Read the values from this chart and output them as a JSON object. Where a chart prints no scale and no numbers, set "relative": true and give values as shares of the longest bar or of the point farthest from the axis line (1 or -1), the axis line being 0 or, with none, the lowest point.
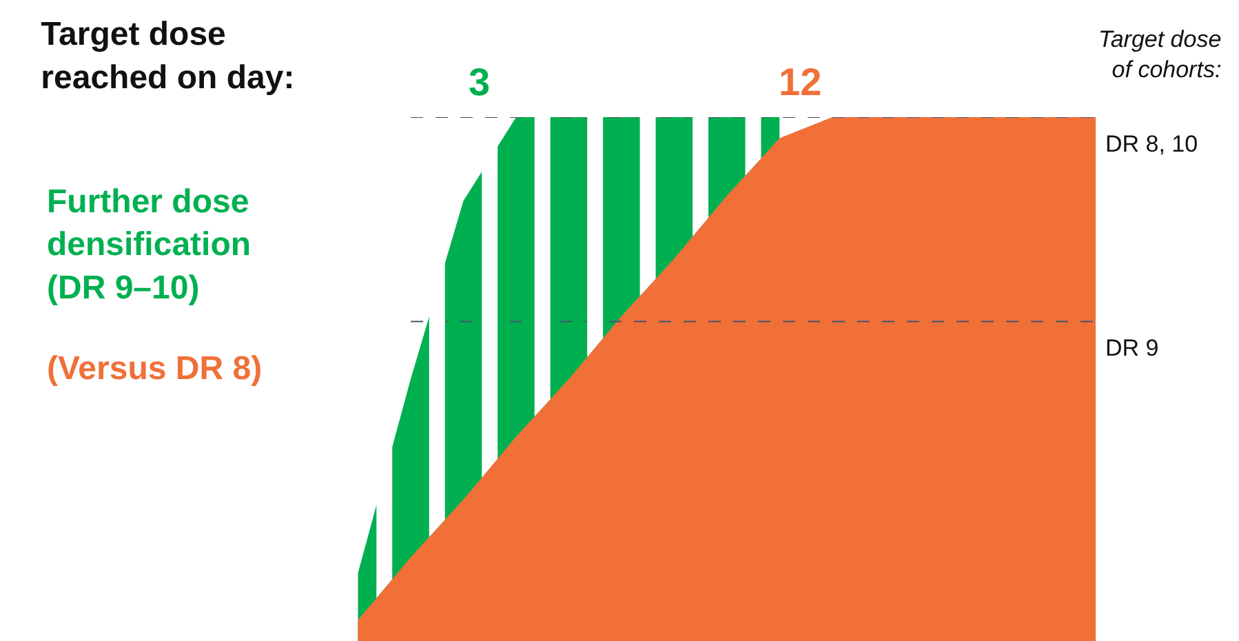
{
  "chart_data": {
    "type": "area",
    "relative": true,
    "title": "Target dose reached on day:",
    "categories": [
      null,
      null,
      null,
      null,
      null,
      null,
      null,
      null,
      null,
      null,
      null,
      null,
      null,
      null,
      null
    ],
    "series": [
      {
        "name": "Further dose densification (DR 9–10)",
        "color": "#00b050",
        "values": [
          0.13,
          0.5,
          0.84,
          1,
          1,
          1,
          1,
          1,
          1,
          null,
          null,
          null,
          null,
          null,
          null
        ]
      },
      {
        "name": "(Versus DR 8)",
        "type": "area",
        "color": "#f07038",
        "values": [
          0.04,
          0.16,
          0.27,
          0.39,
          0.5,
          0.62,
          0.73,
          0.85,
          0.96,
          1,
          1,
          1,
          1,
          1,
          1
        ]
      }
    ],
    "ref_lines": [
      {
        "axis": "y",
        "value": 1,
        "label": "DR 8, 10",
        "color": "#44546a",
        "line_style": "dashed"
      },
      {
        "axis": "y",
        "value": 0.61,
        "label": "DR 9",
        "color": "#44546a",
        "line_style": "dashed"
      }
    ],
    "annotations": [
      "3",
      "12",
      "Target dose of cohorts:"
    ],
    "legend": false
  }
}
